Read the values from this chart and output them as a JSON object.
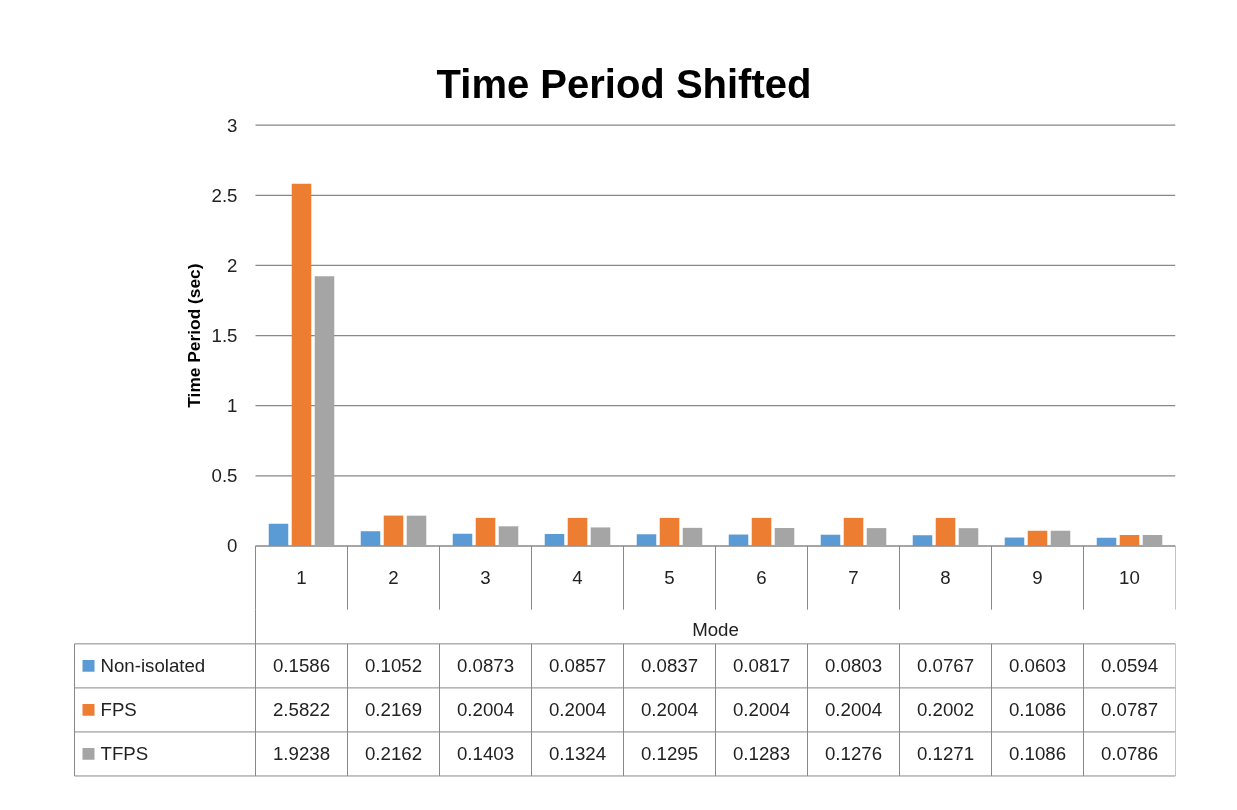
{
  "chart_data": {
    "type": "bar",
    "title": "Time Period Shifted",
    "xlabel": "Mode",
    "ylabel": "Time Period (sec)",
    "categories": [
      "1",
      "2",
      "3",
      "4",
      "5",
      "6",
      "7",
      "8",
      "9",
      "10"
    ],
    "series": [
      {
        "name": "Non-isolated",
        "color": "#5b9bd5",
        "values": [
          0.1586,
          0.1052,
          0.0873,
          0.0857,
          0.0837,
          0.0817,
          0.0803,
          0.0767,
          0.0603,
          0.0594
        ]
      },
      {
        "name": "FPS",
        "color": "#ed7d31",
        "values": [
          2.5822,
          0.2169,
          0.2004,
          0.2004,
          0.2004,
          0.2004,
          0.2004,
          0.2002,
          0.1086,
          0.0787
        ]
      },
      {
        "name": "TFPS",
        "color": "#a5a5a5",
        "values": [
          1.9238,
          0.2162,
          0.1403,
          0.1324,
          0.1295,
          0.1283,
          0.1276,
          0.1271,
          0.1086,
          0.0786
        ]
      }
    ],
    "ylim": [
      0,
      3
    ],
    "yticks": [
      0,
      0.5,
      1,
      1.5,
      2,
      2.5,
      3
    ],
    "grid": "y",
    "legend": "bottom",
    "data_labels": true
  }
}
